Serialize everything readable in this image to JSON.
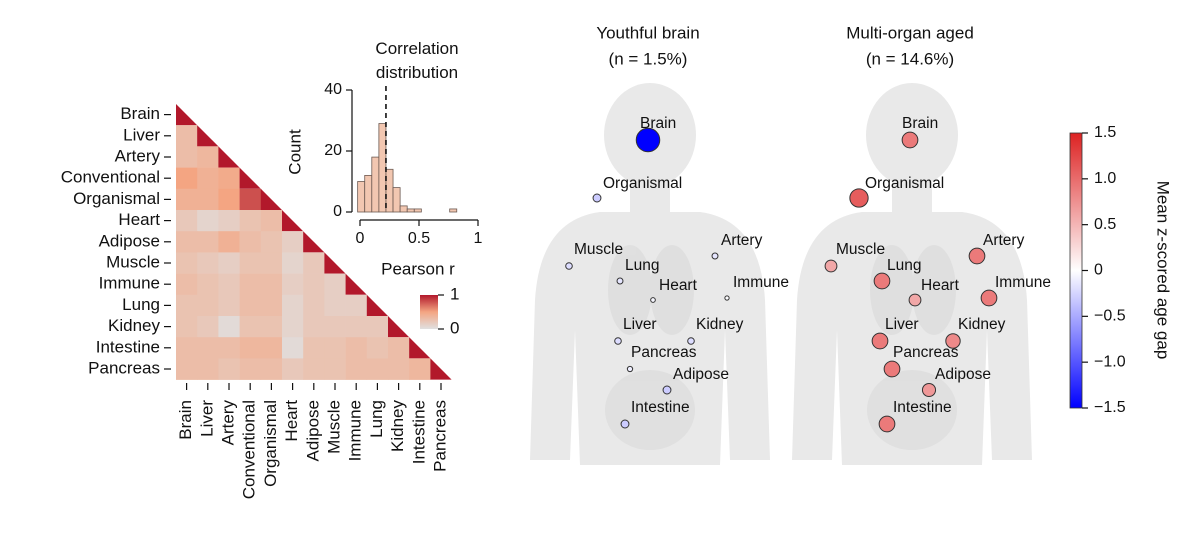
{
  "chart_data": [
    {
      "type": "heatmap",
      "categories": [
        "Brain",
        "Liver",
        "Artery",
        "Conventional",
        "Organismal",
        "Heart",
        "Adipose",
        "Muscle",
        "Immune",
        "Lung",
        "Kidney",
        "Intestine",
        "Pancreas"
      ],
      "matrix": [
        [
          1
        ],
        [
          0.3,
          1
        ],
        [
          0.3,
          0.35,
          1
        ],
        [
          0.5,
          0.4,
          0.45,
          1
        ],
        [
          0.4,
          0.4,
          0.5,
          0.8,
          1
        ],
        [
          0.2,
          0.1,
          0.15,
          0.25,
          0.3,
          1
        ],
        [
          0.3,
          0.3,
          0.4,
          0.3,
          0.25,
          0.15,
          1
        ],
        [
          0.25,
          0.2,
          0.15,
          0.25,
          0.25,
          0.1,
          0.2,
          1
        ],
        [
          0.3,
          0.25,
          0.2,
          0.3,
          0.3,
          0.15,
          0.2,
          0.15,
          1
        ],
        [
          0.25,
          0.25,
          0.2,
          0.3,
          0.3,
          0.1,
          0.2,
          0.15,
          0.15,
          1
        ],
        [
          0.25,
          0.2,
          0.05,
          0.25,
          0.25,
          0.1,
          0.2,
          0.2,
          0.2,
          0.2,
          1
        ],
        [
          0.3,
          0.3,
          0.3,
          0.35,
          0.35,
          0.05,
          0.25,
          0.25,
          0.3,
          0.25,
          0.3,
          1
        ],
        [
          0.3,
          0.3,
          0.25,
          0.3,
          0.3,
          0.2,
          0.25,
          0.25,
          0.3,
          0.3,
          0.3,
          0.35,
          1
        ]
      ],
      "colorbar_lim": [
        0,
        1
      ],
      "colorbar_ticks": [
        0,
        1
      ],
      "colorbar_label": "Pearson r"
    },
    {
      "type": "histogram",
      "title": "Correlation distribution",
      "ylabel": "Count",
      "bins": [
        -0.02,
        0.04,
        0.1,
        0.16,
        0.22,
        0.28,
        0.34,
        0.4,
        0.46,
        0.52,
        0.58,
        0.64,
        0.7,
        0.76,
        0.82,
        0.88
      ],
      "values": [
        10,
        12,
        18,
        29,
        14,
        8,
        2,
        1,
        1,
        0,
        0,
        0,
        0,
        1,
        0
      ],
      "color": "#f2c7b1",
      "mean_line": 0.22,
      "xlim": [
        0,
        1
      ],
      "xticks": [
        0,
        0.5,
        1
      ],
      "ylim": [
        0,
        40
      ],
      "yticks": [
        0,
        20,
        40
      ]
    },
    {
      "type": "body-map",
      "categories": [
        "Brain",
        "Organismal",
        "Muscle",
        "Artery",
        "Lung",
        "Heart",
        "Immune",
        "Liver",
        "Kidney",
        "Pancreas",
        "Adipose",
        "Intestine"
      ],
      "panels": [
        {
          "title": "Youthful brain",
          "subtitle": "(n = 1.5%)",
          "values": [
            -1.5,
            -0.3,
            -0.2,
            -0.15,
            -0.15,
            -0.05,
            -0.02,
            -0.2,
            -0.2,
            -0.1,
            -0.3,
            -0.3
          ]
        },
        {
          "title": "Multi-organ aged",
          "subtitle": "(n = 14.6%)",
          "values": [
            0.9,
            1.1,
            0.6,
            0.9,
            0.9,
            0.6,
            0.9,
            0.9,
            0.8,
            0.9,
            0.7,
            0.9
          ]
        }
      ],
      "colorbar_lim": [
        -1.5,
        1.5
      ],
      "colorbar_ticks": [
        {
          "value": 1.5,
          "label": "1.5"
        },
        {
          "value": 1,
          "label": "1.0"
        },
        0.5,
        0,
        {
          "value": -0.5,
          "label": "−0.5"
        },
        {
          "value": -1,
          "label": "−1.0"
        },
        {
          "value": -1.5,
          "label": "−1.5"
        }
      ],
      "colorbar_label": "Mean z-scored age gap"
    }
  ]
}
